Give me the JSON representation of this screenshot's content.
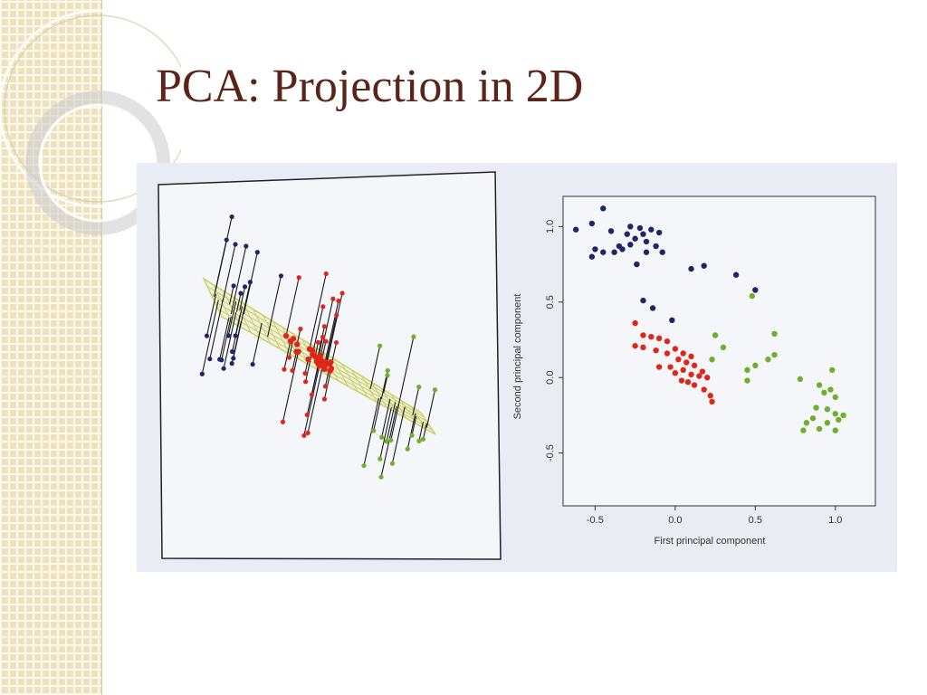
{
  "slide": {
    "title": "PCA: Projection in 2D"
  },
  "colors": {
    "title": "#5a2418",
    "sidebar": "#efe2bd",
    "navy": "#1f2566",
    "red": "#e0261a",
    "green": "#6fae2e",
    "plane": "#c9cf62"
  },
  "chart_data": [
    {
      "type": "scatter-3d",
      "title": "",
      "series": [
        {
          "color": "navy",
          "count": 22
        },
        {
          "color": "red",
          "count": 25
        },
        {
          "color": "green",
          "count": 18
        }
      ],
      "plane": "principal component plane with projection lines"
    },
    {
      "type": "scatter",
      "title": "",
      "xlabel": "First principal component",
      "ylabel": "Second principal component",
      "xlim": [
        -0.7,
        1.25
      ],
      "ylim": [
        -0.85,
        1.2
      ],
      "xticks": [
        "-0.5",
        "0.0",
        "0.5",
        "1.0"
      ],
      "yticks": [
        "-0.5",
        "0.0",
        "0.5",
        "1.0"
      ],
      "series": [
        {
          "color": "navy",
          "points": [
            [
              -0.62,
              0.98
            ],
            [
              -0.52,
              1.02
            ],
            [
              -0.45,
              1.12
            ],
            [
              -0.4,
              0.97
            ],
            [
              -0.35,
              0.87
            ],
            [
              -0.3,
              0.95
            ],
            [
              -0.28,
              1.0
            ],
            [
              -0.25,
              0.92
            ],
            [
              -0.22,
              0.99
            ],
            [
              -0.2,
              0.95
            ],
            [
              -0.18,
              0.9
            ],
            [
              -0.15,
              0.98
            ],
            [
              -0.12,
              0.87
            ],
            [
              -0.1,
              0.96
            ],
            [
              -0.08,
              0.83
            ],
            [
              -0.5,
              0.85
            ],
            [
              -0.52,
              0.8
            ],
            [
              -0.45,
              0.83
            ],
            [
              -0.38,
              0.83
            ],
            [
              -0.33,
              0.85
            ],
            [
              -0.24,
              0.75
            ],
            [
              -0.18,
              0.83
            ],
            [
              -0.28,
              0.88
            ],
            [
              0.1,
              0.72
            ],
            [
              0.18,
              0.74
            ],
            [
              0.38,
              0.68
            ],
            [
              0.5,
              0.58
            ],
            [
              -0.2,
              0.51
            ],
            [
              -0.14,
              0.46
            ],
            [
              -0.02,
              0.38
            ]
          ]
        },
        {
          "color": "red",
          "points": [
            [
              -0.25,
              0.36
            ],
            [
              -0.2,
              0.28
            ],
            [
              -0.15,
              0.27
            ],
            [
              -0.1,
              0.26
            ],
            [
              -0.05,
              0.24
            ],
            [
              -0.25,
              0.21
            ],
            [
              -0.2,
              0.2
            ],
            [
              -0.12,
              0.18
            ],
            [
              -0.05,
              0.16
            ],
            [
              0.0,
              0.19
            ],
            [
              0.05,
              0.16
            ],
            [
              0.1,
              0.14
            ],
            [
              0.02,
              0.12
            ],
            [
              0.07,
              0.1
            ],
            [
              0.12,
              0.08
            ],
            [
              0.17,
              0.04
            ],
            [
              0.1,
              0.02
            ],
            [
              0.15,
              0.01
            ],
            [
              0.2,
              0.0
            ],
            [
              0.05,
              0.05
            ],
            [
              0.08,
              -0.03
            ],
            [
              0.12,
              -0.05
            ],
            [
              0.18,
              -0.08
            ],
            [
              0.22,
              -0.12
            ],
            [
              0.23,
              -0.16
            ],
            [
              -0.1,
              0.07
            ],
            [
              -0.03,
              0.07
            ],
            [
              0.0,
              0.03
            ],
            [
              0.04,
              -0.02
            ]
          ]
        },
        {
          "color": "green",
          "points": [
            [
              0.48,
              0.54
            ],
            [
              0.25,
              0.28
            ],
            [
              0.62,
              0.29
            ],
            [
              0.23,
              0.12
            ],
            [
              0.3,
              0.2
            ],
            [
              0.45,
              0.05
            ],
            [
              0.5,
              0.08
            ],
            [
              0.58,
              0.12
            ],
            [
              0.62,
              0.15
            ],
            [
              0.45,
              -0.02
            ],
            [
              0.78,
              -0.01
            ],
            [
              0.9,
              -0.05
            ],
            [
              0.93,
              -0.1
            ],
            [
              0.97,
              -0.08
            ],
            [
              1.0,
              -0.13
            ],
            [
              0.88,
              -0.2
            ],
            [
              0.95,
              -0.21
            ],
            [
              1.0,
              -0.24
            ],
            [
              1.05,
              -0.25
            ],
            [
              0.82,
              -0.3
            ],
            [
              0.9,
              -0.34
            ],
            [
              0.95,
              -0.3
            ],
            [
              1.0,
              -0.35
            ],
            [
              1.02,
              -0.28
            ],
            [
              0.8,
              -0.35
            ],
            [
              0.98,
              0.05
            ],
            [
              0.86,
              -0.27
            ]
          ]
        }
      ]
    }
  ]
}
